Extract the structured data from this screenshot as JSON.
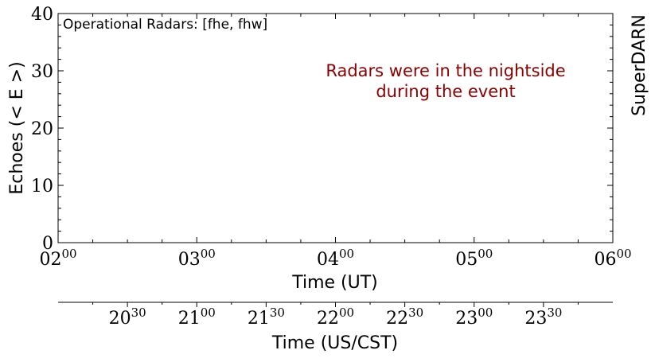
{
  "chart_data": {
    "type": "line",
    "ylabel": "Echoes (< E >)",
    "xlabel": "Time (UT)",
    "ylim": [
      0,
      40
    ],
    "yticks_major": [
      0,
      10,
      20,
      30,
      40
    ],
    "yticks_minor_step": 2,
    "xlim_hours": [
      2,
      6
    ],
    "xticks_major": [
      {
        "hour": 2,
        "base": "02",
        "sup": "00"
      },
      {
        "hour": 3,
        "base": "03",
        "sup": "00"
      },
      {
        "hour": 4,
        "base": "04",
        "sup": "00"
      },
      {
        "hour": 5,
        "base": "05",
        "sup": "00"
      },
      {
        "hour": 6,
        "base": "06",
        "sup": "00"
      }
    ],
    "xticks_minor_step_hours": 0.25,
    "series": [],
    "grid": false,
    "annotations": {
      "top_left": "Operational Radars: [fhe, fhw]",
      "message_line1": "Radars were in the nightside",
      "message_line2": "during the event",
      "message_color": "#8b0000",
      "right_side": "SuperDARN"
    },
    "secondary_axis": {
      "xlabel": "Time (US/CST)",
      "utc_offset_hours": -6,
      "ticks_major": [
        {
          "base": "20",
          "sup": "30"
        },
        {
          "base": "21",
          "sup": "00"
        },
        {
          "base": "21",
          "sup": "30"
        },
        {
          "base": "22",
          "sup": "00"
        },
        {
          "base": "22",
          "sup": "30"
        },
        {
          "base": "23",
          "sup": "00"
        },
        {
          "base": "23",
          "sup": "30"
        }
      ],
      "ticks_minor_step_hours": 0.25
    }
  }
}
